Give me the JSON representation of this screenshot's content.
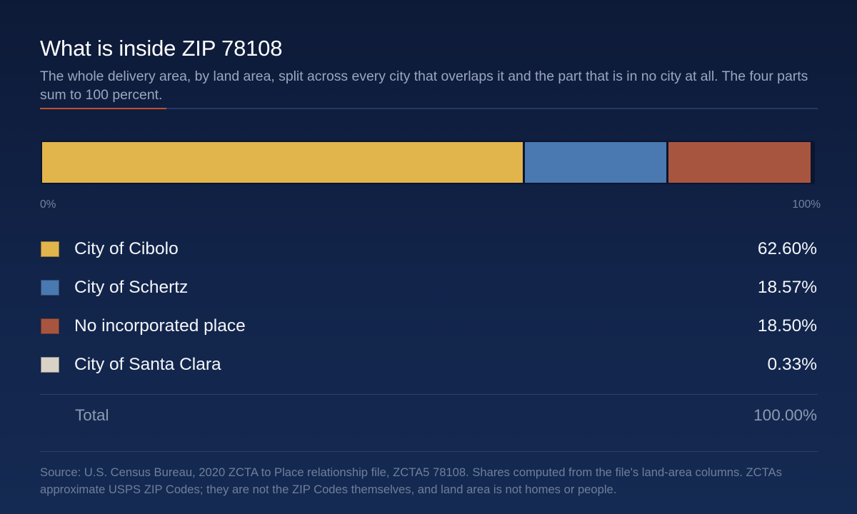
{
  "header": {
    "title": "What is inside ZIP 78108",
    "subtitle": "The whole delivery area, by land area, split across every city that overlaps it and the part that is in no city at all. The four parts sum to 100 percent."
  },
  "colors": {
    "City of Cibolo": "#e2b44c",
    "City of Schertz": "#4a78b0",
    "No incorporated place": "#a85540",
    "City of Santa Clara": "#d9d2c7",
    "accent": "#c0512e"
  },
  "chart_data": {
    "type": "bar",
    "orientation": "horizontal-stacked",
    "unit": "%",
    "xlim": [
      0,
      100
    ],
    "axis_labels": [
      "0%",
      "100%"
    ],
    "series": [
      {
        "name": "City of Cibolo",
        "value": 62.6,
        "display": "62.60%"
      },
      {
        "name": "City of Schertz",
        "value": 18.57,
        "display": "18.57%"
      },
      {
        "name": "No incorporated place",
        "value": 18.5,
        "display": "18.50%"
      },
      {
        "name": "City of Santa Clara",
        "value": 0.33,
        "display": "0.33%"
      }
    ],
    "total": {
      "label": "Total",
      "display": "100.00%"
    },
    "legend": "below"
  },
  "footer": {
    "source": "Source: U.S. Census Bureau, 2020 ZCTA to Place relationship file, ZCTA5 78108. Shares computed from the file's land-area columns. ZCTAs approximate USPS ZIP Codes; they are not the ZIP Codes themselves, and land area is not homes or people."
  }
}
